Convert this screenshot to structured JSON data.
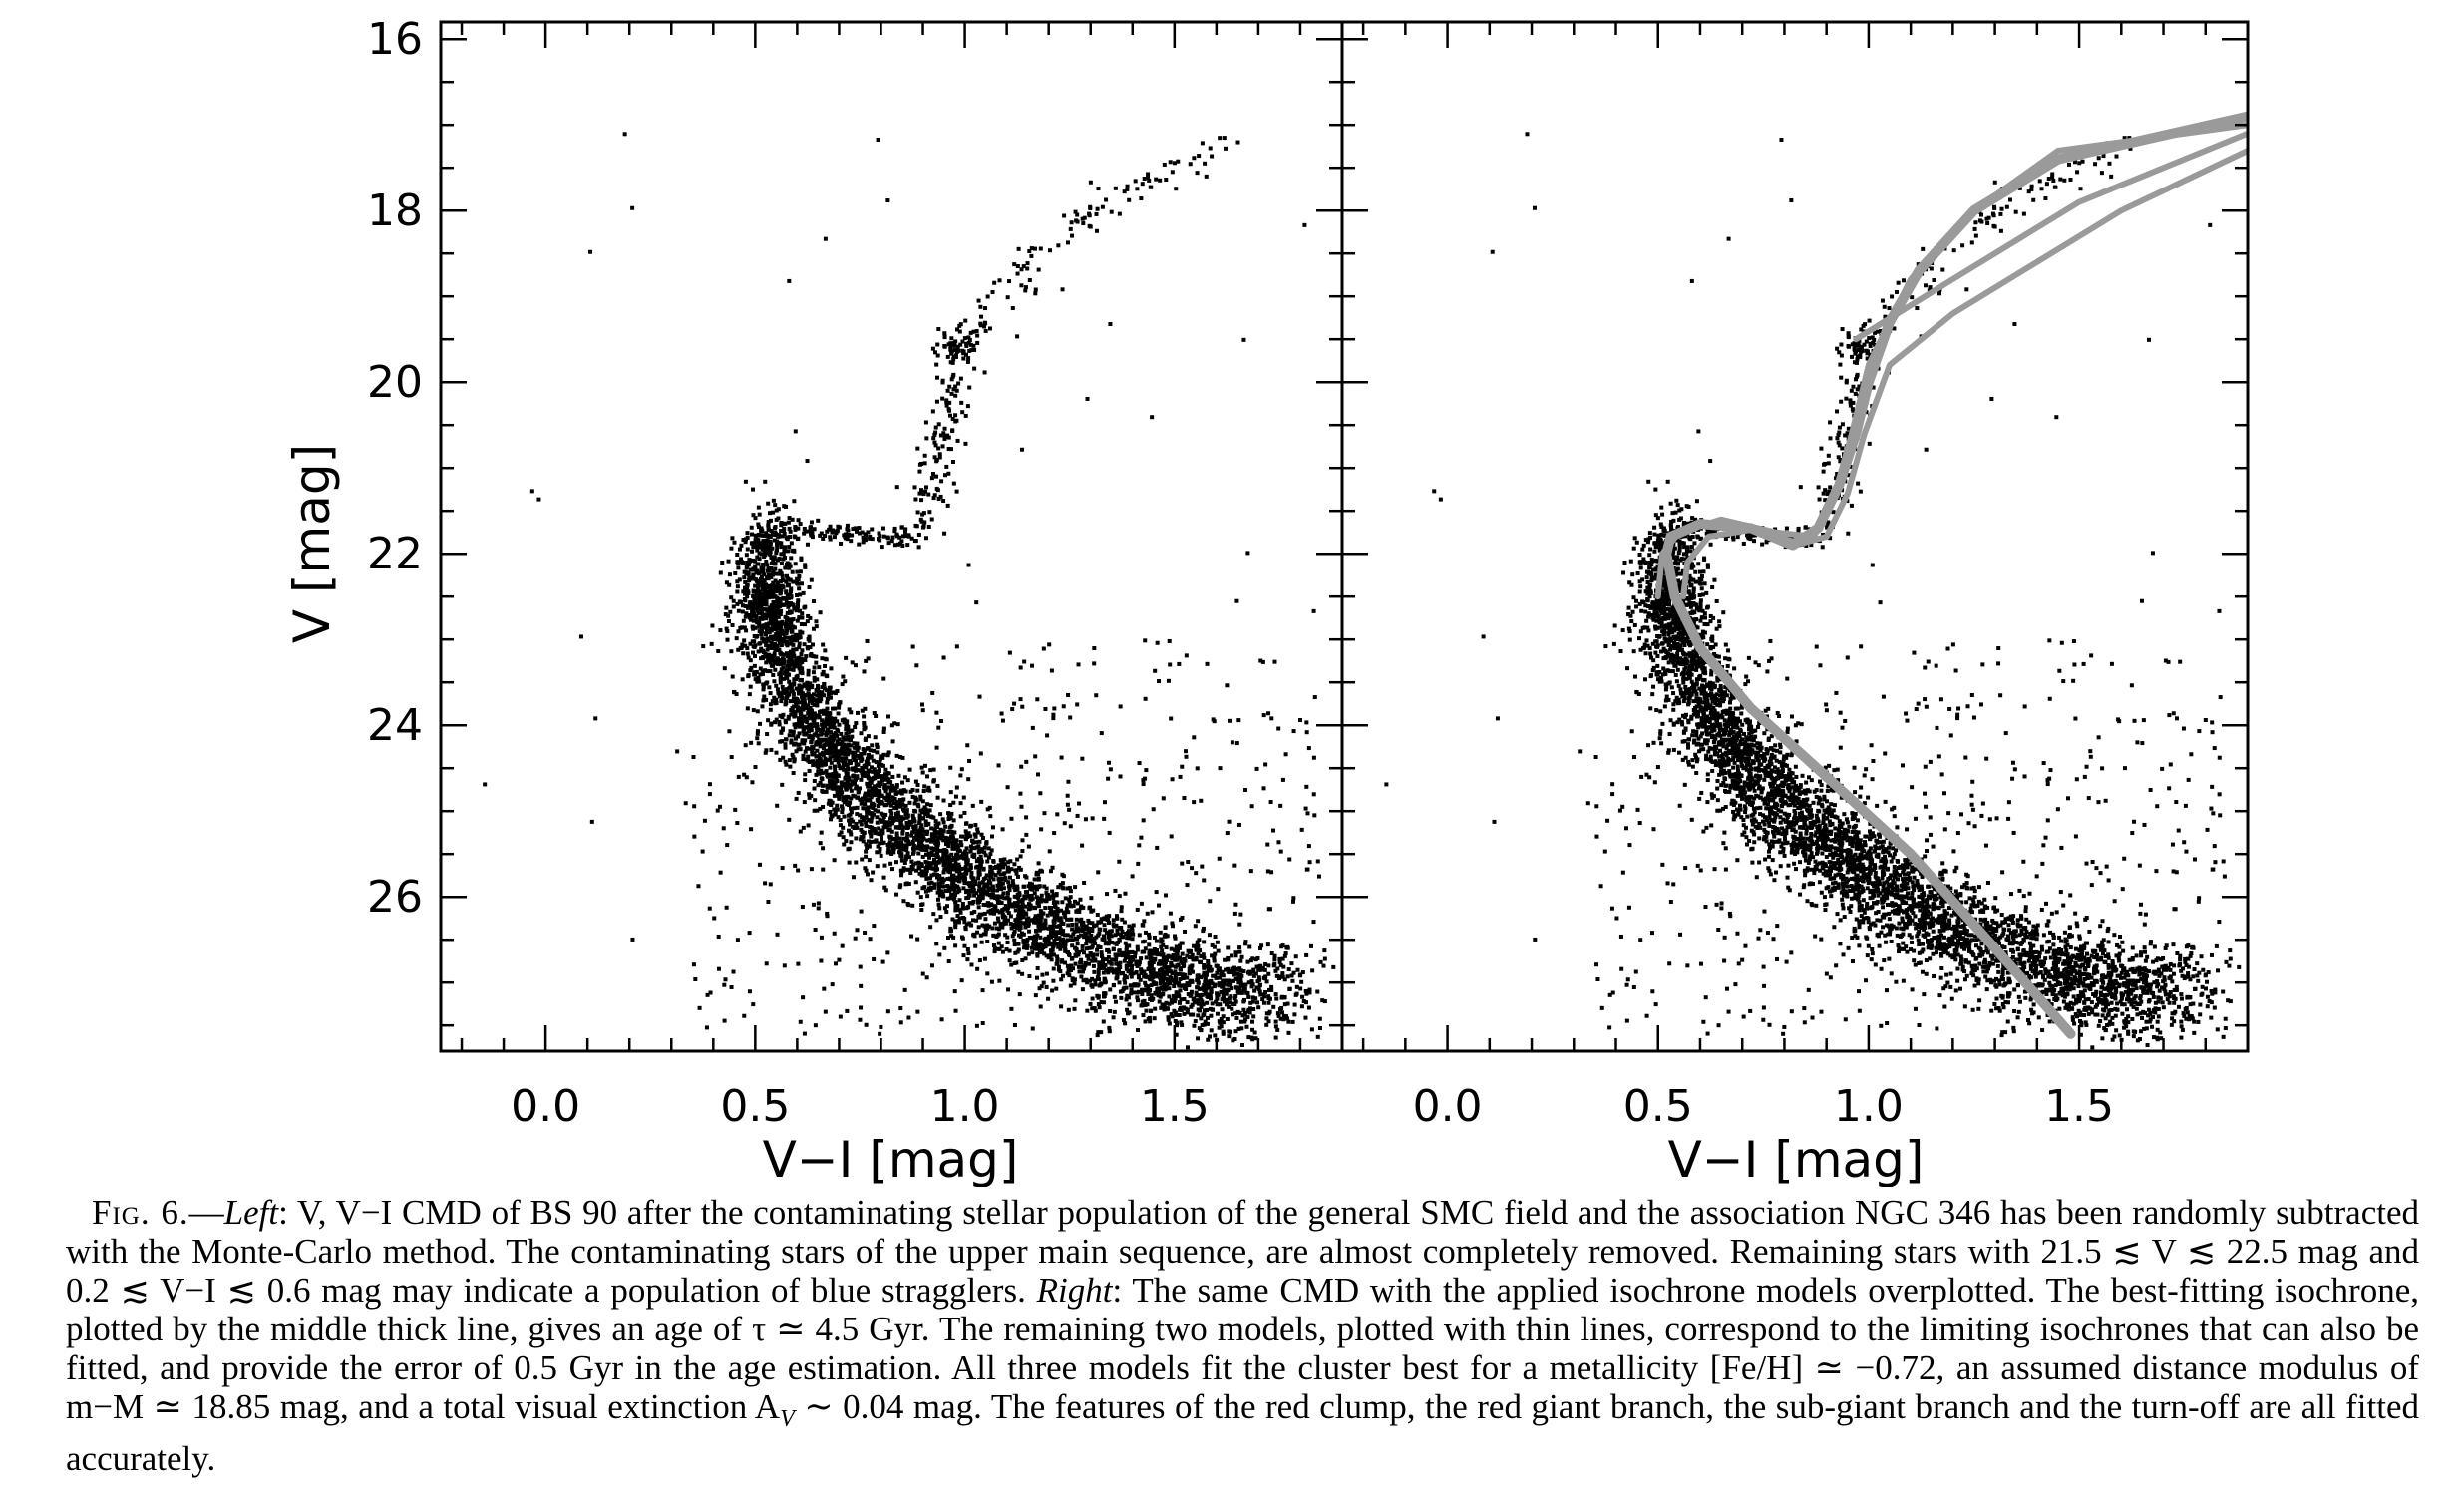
{
  "figure": {
    "panels": [
      {
        "name": "left",
        "xlabel": "V−I [mag]",
        "ylabel": "V [mag]",
        "xticks": [
          "0.0",
          "0.5",
          "1.0",
          "1.5"
        ],
        "yticks": [
          "16",
          "18",
          "20",
          "22",
          "24",
          "26"
        ],
        "has_isochrones": false
      },
      {
        "name": "right",
        "xlabel": "V−I [mag]",
        "yticks": [],
        "xticks": [
          "0.0",
          "0.5",
          "1.0",
          "1.5"
        ],
        "has_isochrones": true
      }
    ]
  },
  "chart_data": [
    {
      "type": "scatter",
      "panel": "left",
      "xlabel": "V−I [mag]",
      "ylabel": "V [mag]",
      "xlim": [
        -0.25,
        1.9
      ],
      "ylim": [
        27.8,
        15.8
      ],
      "y_inverted": true,
      "xticks": [
        0.0,
        0.5,
        1.0,
        1.5
      ],
      "yticks": [
        16,
        18,
        20,
        22,
        24,
        26
      ],
      "features": {
        "main_sequence_ridge": [
          [
            0.52,
            22.3
          ],
          [
            0.55,
            23.0
          ],
          [
            0.62,
            23.8
          ],
          [
            0.72,
            24.5
          ],
          [
            0.85,
            25.2
          ],
          [
            1.0,
            25.8
          ],
          [
            1.2,
            26.4
          ],
          [
            1.45,
            26.9
          ],
          [
            1.7,
            27.2
          ]
        ],
        "turnoff_subgiant_branch": [
          [
            0.5,
            22.0
          ],
          [
            0.55,
            21.7
          ],
          [
            0.7,
            21.75
          ],
          [
            0.85,
            21.85
          ],
          [
            0.92,
            21.6
          ]
        ],
        "red_giant_branch": [
          [
            0.92,
            21.4
          ],
          [
            0.96,
            20.5
          ],
          [
            0.98,
            19.9
          ],
          [
            1.05,
            19.2
          ],
          [
            1.15,
            18.6
          ],
          [
            1.3,
            18.0
          ],
          [
            1.45,
            17.6
          ],
          [
            1.65,
            17.1
          ]
        ],
        "red_clump": {
          "x": 0.98,
          "y": 19.6
        }
      },
      "approx_point_count": 12000
    },
    {
      "type": "scatter",
      "panel": "right",
      "xlabel": "V−I [mag]",
      "xlim": [
        -0.25,
        1.9
      ],
      "ylim": [
        27.8,
        15.8
      ],
      "y_inverted": true,
      "xticks": [
        0.0,
        0.5,
        1.0,
        1.5
      ],
      "series": [
        {
          "role": "best-fit isochrone (thick)",
          "x": [
            1.48,
            1.3,
            1.1,
            0.9,
            0.72,
            0.6,
            0.54,
            0.52,
            0.53,
            0.6,
            0.72,
            0.82,
            0.88,
            0.93,
            0.97,
            1.0,
            1.05,
            1.12,
            1.25,
            1.45,
            1.9
          ],
          "y": [
            27.6,
            26.6,
            25.5,
            24.6,
            23.8,
            23.1,
            22.5,
            22.0,
            21.8,
            21.65,
            21.7,
            21.9,
            21.7,
            21.2,
            20.6,
            20.0,
            19.3,
            18.7,
            18.0,
            17.4,
            16.9
          ]
        },
        {
          "role": "limiting isochrone (thin)",
          "x": [
            0.5,
            0.51,
            0.55,
            0.65,
            0.78,
            0.87,
            0.92,
            0.96,
            1.0,
            1.1,
            1.25,
            1.45,
            1.9
          ],
          "y": [
            22.5,
            22.0,
            21.75,
            21.6,
            21.75,
            21.8,
            21.3,
            20.6,
            19.8,
            18.8,
            18.0,
            17.3,
            17.0
          ]
        },
        {
          "role": "limiting isochrone (thin)",
          "x": [
            0.56,
            0.57,
            0.62,
            0.72,
            0.84,
            0.9,
            0.95,
            0.99,
            1.05,
            1.2,
            1.4,
            1.6,
            1.9
          ],
          "y": [
            22.5,
            22.1,
            21.8,
            21.72,
            21.88,
            21.8,
            21.3,
            20.6,
            19.8,
            19.2,
            18.6,
            18.0,
            17.3
          ]
        },
        {
          "role": "red clump / giant branch loop",
          "x": [
            0.97,
            1.2,
            1.5,
            1.9
          ],
          "y": [
            19.5,
            18.8,
            17.9,
            17.1
          ]
        }
      ],
      "approx_point_count": 12000
    }
  ],
  "caption": {
    "fig_label": "Fig. 6.",
    "dash": "—",
    "left_word": "Left",
    "part1": ": V, V−I CMD of BS 90 after the contaminating stellar population of the general SMC field and the association NGC 346 has been randomly subtracted with the Monte-Carlo method. The contaminating stars of the upper main sequence, are almost completely removed. Remaining stars with 21.5 ≲ V ≲ 22.5 mag and 0.2 ≲ V−I ≲ 0.6 mag may indicate a population of blue stragglers. ",
    "right_word": "Right",
    "part2": ": The same CMD with the applied isochrone models overplotted. The best-fitting isochrone, plotted by the middle thick line, gives an age of τ ≃ 4.5 Gyr. The remaining two models, plotted with thin lines, correspond to the limiting isochrones that can also be fitted, and provide the error of 0.5 Gyr in the age estimation. All three models fit the cluster best for a metallicity [Fe/H] ≃ −0.72, an assumed distance modulus of m−M ≃ 18.85 mag, and a total visual extinction A",
    "av_sub": "V",
    "part3": " ∼ 0.04 mag. The features of the red clump, the red giant branch, the sub-giant branch and the turn-off are all fitted accurately."
  },
  "colors": {
    "stars": "#000000",
    "isochrones": "#9a9a9a"
  }
}
